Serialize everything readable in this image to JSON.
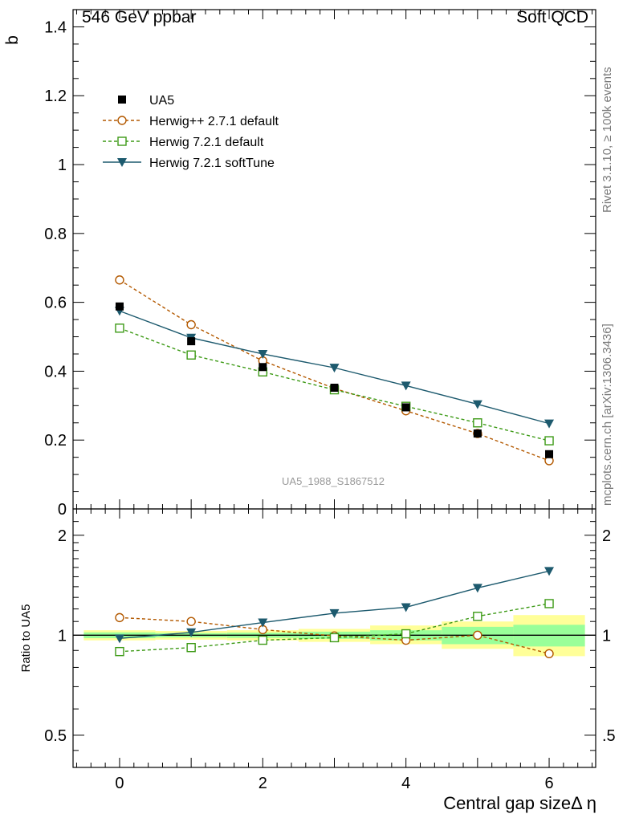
{
  "chart_data": {
    "type": "line",
    "title_left": "546 GeV ppbar",
    "title_right": "Soft QCD",
    "ylabel": "b",
    "ratio_ylabel": "Ratio to UA5",
    "xlabel": "Central gap sizeΔ η",
    "analysis_label": "UA5_1988_S1867512",
    "side_label_top": "Rivet 3.1.10, ≥ 100k events",
    "side_label_bottom": "mcplots.cern.ch [arXiv:1306.3436]",
    "xlim": [
      -0.65,
      6.65
    ],
    "ylim": [
      0,
      1.45
    ],
    "ratio_ylim": [
      0.4,
      2.4
    ],
    "ratio_scale": "log",
    "x_ticks": [
      0,
      2,
      4,
      6
    ],
    "x_tick_labels": [
      "0",
      "2",
      "4",
      "6"
    ],
    "y_ticks": [
      0,
      0.2,
      0.4,
      0.6,
      0.8,
      1,
      1.2,
      1.4
    ],
    "y_tick_labels": [
      "0",
      "0.2",
      "0.4",
      "0.6",
      "0.8",
      "1",
      "1.2",
      "1.4"
    ],
    "ratio_ticks_left": [
      0.5,
      1,
      2
    ],
    "ratio_tick_labels_left": [
      "0.5",
      "1",
      "2"
    ],
    "ratio_ticks_right": [
      0.5,
      1,
      2
    ],
    "ratio_tick_labels_right": [
      ".5",
      "1",
      "2"
    ],
    "x": [
      0,
      1,
      2,
      3,
      4,
      5,
      6
    ],
    "series": [
      {
        "name": "UA5",
        "marker": "square-filled",
        "color": "#000000",
        "line": "none",
        "values": [
          0.588,
          0.487,
          0.412,
          0.352,
          0.295,
          0.219,
          0.159
        ]
      },
      {
        "name": "Herwig++ 2.7.1 default",
        "marker": "circle-open",
        "color": "#b35900",
        "line": "dashed",
        "values": [
          0.665,
          0.535,
          0.43,
          0.35,
          0.285,
          0.219,
          0.14
        ]
      },
      {
        "name": "Herwig 7.2.1 default",
        "marker": "square-open",
        "color": "#3d9a16",
        "line": "dashed",
        "values": [
          0.525,
          0.447,
          0.398,
          0.346,
          0.298,
          0.25,
          0.198
        ]
      },
      {
        "name": "Herwig 7.2.1 softTune",
        "marker": "triangle-down",
        "color": "#1d5a6e",
        "line": "solid",
        "values": [
          0.575,
          0.497,
          0.45,
          0.41,
          0.358,
          0.304,
          0.248
        ]
      }
    ],
    "ratio_series": [
      {
        "name": "Herwig++ 2.7.1 default",
        "values": [
          1.13,
          1.1,
          1.04,
          0.995,
          0.966,
          1.0,
          0.88
        ]
      },
      {
        "name": "Herwig 7.2.1 default",
        "values": [
          0.893,
          0.918,
          0.966,
          0.983,
          1.01,
          1.14,
          1.245
        ]
      },
      {
        "name": "Herwig 7.2.1 softTune",
        "values": [
          0.978,
          1.02,
          1.092,
          1.165,
          1.214,
          1.388,
          1.56
        ]
      }
    ],
    "uncertainty_bands": {
      "yellow": [
        [
          0.965,
          1.035
        ],
        [
          0.97,
          1.03
        ],
        [
          0.965,
          1.035
        ],
        [
          0.955,
          1.045
        ],
        [
          0.94,
          1.07
        ],
        [
          0.91,
          1.1
        ],
        [
          0.865,
          1.15
        ]
      ],
      "green": [
        [
          0.98,
          1.02
        ],
        [
          0.985,
          1.015
        ],
        [
          0.982,
          1.018
        ],
        [
          0.975,
          1.025
        ],
        [
          0.965,
          1.035
        ],
        [
          0.94,
          1.06
        ],
        [
          0.925,
          1.075
        ]
      ],
      "yellow_color": "#ffff99",
      "green_color": "#99ff99"
    },
    "grid": false,
    "legend_position": "top-left"
  }
}
